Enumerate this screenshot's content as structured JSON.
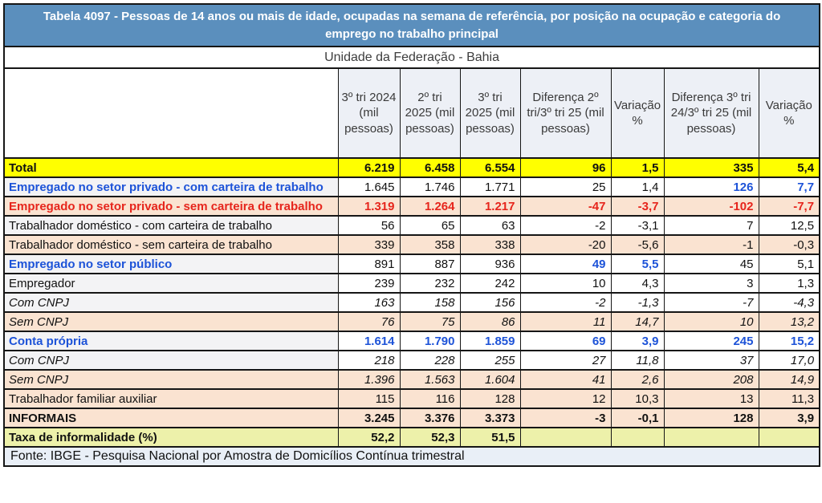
{
  "chart_data": {
    "type": "table",
    "title": "Tabela 4097 - Pessoas de 14 anos ou mais de idade, ocupadas na semana de referência, por posição na ocupação e categoria do emprego no trabalho principal",
    "subtitle": "Unidade da Federação - Bahia",
    "columns": [
      "3º tri 2024 (mil pessoas)",
      "2º tri 2025 (mil pessoas)",
      "3º tri 2025 (mil pessoas)",
      "Diferença 2º tri/3º tri 25 (mil pessoas)",
      "Variação %",
      "Diferença 3º tri 24/3º tri 25 (mil pessoas)",
      "Variação %"
    ],
    "rows": [
      {
        "label": "Total",
        "values": [
          "6.219",
          "6.458",
          "6.554",
          "96",
          "1,5",
          "335",
          "5,4"
        ],
        "bg": "yellow",
        "label_color": "black",
        "label_bold": true,
        "value_color": "black",
        "value_bold": true,
        "italic": false,
        "indent": false,
        "highlights": []
      },
      {
        "label": "Empregado no setor privado - com carteira de trabalho",
        "values": [
          "1.645",
          "1.746",
          "1.771",
          "25",
          "1,4",
          "126",
          "7,7"
        ],
        "bg": "white",
        "label_color": "blue",
        "label_bold": true,
        "value_color": "black",
        "value_bold": false,
        "italic": false,
        "indent": false,
        "highlights": [
          5,
          6
        ]
      },
      {
        "label": "Empregado no setor privado - sem carteira de trabalho",
        "values": [
          "1.319",
          "1.264",
          "1.217",
          "-47",
          "-3,7",
          "-102",
          "-7,7"
        ],
        "bg": "peach",
        "label_color": "red",
        "label_bold": true,
        "value_color": "red",
        "value_bold": true,
        "italic": false,
        "indent": false,
        "highlights": []
      },
      {
        "label": "Trabalhador doméstico - com  carteira de trabalho",
        "values": [
          "56",
          "65",
          "63",
          "-2",
          "-3,1",
          "7",
          "12,5"
        ],
        "bg": "white",
        "label_color": "black",
        "label_bold": false,
        "value_color": "black",
        "value_bold": false,
        "italic": false,
        "indent": false,
        "highlights": []
      },
      {
        "label": "Trabalhador doméstico - sem  carteira de trabalho",
        "values": [
          "339",
          "358",
          "338",
          "-20",
          "-5,6",
          "-1",
          "-0,3"
        ],
        "bg": "peach",
        "label_color": "black",
        "label_bold": false,
        "value_color": "black",
        "value_bold": false,
        "italic": false,
        "indent": false,
        "highlights": []
      },
      {
        "label": "Empregado no setor público",
        "values": [
          "891",
          "887",
          "936",
          "49",
          "5,5",
          "45",
          "5,1"
        ],
        "bg": "white",
        "label_color": "blue",
        "label_bold": true,
        "value_color": "black",
        "value_bold": false,
        "italic": false,
        "indent": false,
        "highlights": [
          3,
          4
        ]
      },
      {
        "label": "Empregador",
        "values": [
          "239",
          "232",
          "242",
          "10",
          "4,3",
          "3",
          "1,3"
        ],
        "bg": "white",
        "label_color": "black",
        "label_bold": false,
        "value_color": "black",
        "value_bold": false,
        "italic": false,
        "indent": false,
        "highlights": []
      },
      {
        "label": "Com CNPJ",
        "values": [
          "163",
          "158",
          "156",
          "-2",
          "-1,3",
          "-7",
          "-4,3"
        ],
        "bg": "white",
        "label_color": "black",
        "label_bold": false,
        "value_color": "black",
        "value_bold": false,
        "italic": true,
        "indent": true,
        "highlights": []
      },
      {
        "label": "Sem CNPJ",
        "values": [
          "76",
          "75",
          "86",
          "11",
          "14,7",
          "10",
          "13,2"
        ],
        "bg": "peach",
        "label_color": "black",
        "label_bold": false,
        "value_color": "black",
        "value_bold": false,
        "italic": true,
        "indent": true,
        "highlights": []
      },
      {
        "label": "Conta própria",
        "values": [
          "1.614",
          "1.790",
          "1.859",
          "69",
          "3,9",
          "245",
          "15,2"
        ],
        "bg": "white",
        "label_color": "blue",
        "label_bold": true,
        "value_color": "blue",
        "value_bold": true,
        "italic": false,
        "indent": false,
        "highlights": []
      },
      {
        "label": "Com CNPJ",
        "values": [
          "218",
          "228",
          "255",
          "27",
          "11,8",
          "37",
          "17,0"
        ],
        "bg": "white",
        "label_color": "black",
        "label_bold": false,
        "value_color": "black",
        "value_bold": false,
        "italic": true,
        "indent": true,
        "highlights": []
      },
      {
        "label": "Sem CNPJ",
        "values": [
          "1.396",
          "1.563",
          "1.604",
          "41",
          "2,6",
          "208",
          "14,9"
        ],
        "bg": "peach",
        "label_color": "black",
        "label_bold": false,
        "value_color": "black",
        "value_bold": false,
        "italic": true,
        "indent": true,
        "highlights": []
      },
      {
        "label": "Trabalhador familiar auxiliar",
        "values": [
          "115",
          "116",
          "128",
          "12",
          "10,3",
          "13",
          "11,3"
        ],
        "bg": "peach",
        "label_color": "black",
        "label_bold": false,
        "value_color": "black",
        "value_bold": false,
        "italic": false,
        "indent": false,
        "highlights": []
      },
      {
        "label": "INFORMAIS",
        "values": [
          "3.245",
          "3.376",
          "3.373",
          "-3",
          "-0,1",
          "128",
          "3,9"
        ],
        "bg": "peach",
        "label_color": "black",
        "label_bold": true,
        "value_color": "black",
        "value_bold": true,
        "italic": false,
        "indent": false,
        "highlights": []
      },
      {
        "label": "Taxa de informalidade (%)",
        "values": [
          "52,2",
          "52,3",
          "51,5",
          "",
          "",
          "",
          ""
        ],
        "bg": "green",
        "label_color": "black",
        "label_bold": true,
        "value_color": "black",
        "value_bold": true,
        "italic": false,
        "indent": false,
        "highlights": []
      }
    ],
    "source": "Fonte: IBGE - Pesquisa Nacional por Amostra de Domicílios Contínua trimestral"
  },
  "colors": {
    "title_bg": "#5b8fbd",
    "title_text": "#ffffff",
    "header_bg": "#edf0f6",
    "row_yellow": "#ffff00",
    "row_peach": "#fae3d1",
    "row_green": "#edf1aa",
    "source_bg": "#e9eff7",
    "highlight_blue": "#1d53d8",
    "highlight_red": "#e6251c",
    "border": "#161616"
  }
}
